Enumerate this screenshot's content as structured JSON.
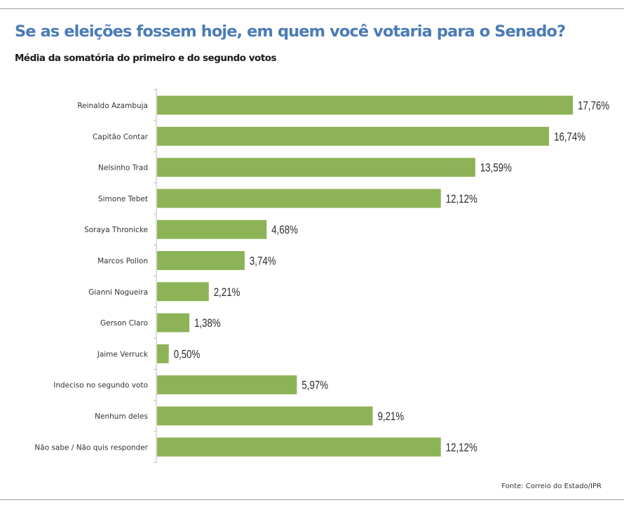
{
  "chart_data": {
    "type": "bar",
    "orientation": "horizontal",
    "title": "Se as eleições fossem hoje, em quem você votaria para o Senado?",
    "subtitle": "Média da somatória do primeiro e do segundo votos",
    "source": "Fonte: Correio do Estado/IPR",
    "categories": [
      "Reinaldo Azambuja",
      "Capitão Contar",
      "Nelsinho Trad",
      "Simone Tebet",
      "Soraya Thronicke",
      "Marcos Pollon",
      "Gianni Nogueira",
      "Gerson Claro",
      "Jaime Verruck",
      "Indeciso no segundo voto",
      "Nenhum deles",
      "Não sabe / Não quis responder"
    ],
    "values": [
      17.76,
      16.74,
      13.59,
      12.12,
      4.68,
      3.74,
      2.21,
      1.38,
      0.5,
      5.97,
      9.21,
      12.12
    ],
    "labels": [
      "17,76%",
      "16,74%",
      "13,59%",
      "12,12%",
      "4,68%",
      "3,74%",
      "2,21%",
      "1,38%",
      "0,50%",
      "5,97%",
      "9,21%",
      "12,12%"
    ],
    "xlim": [
      0,
      18
    ],
    "grid": false,
    "colors": {
      "bar": "#8db357",
      "title": "#4a7bb7"
    }
  }
}
